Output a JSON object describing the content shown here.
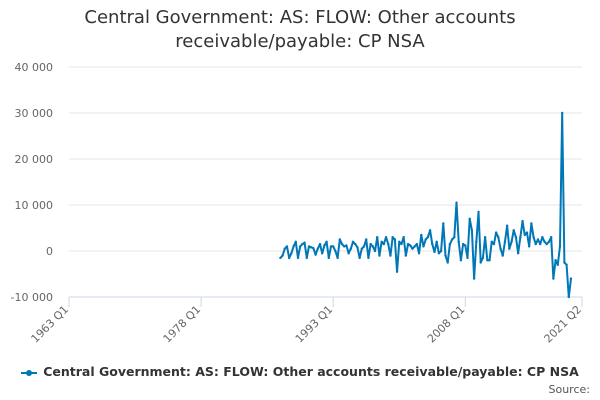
{
  "chart_data": {
    "type": "line",
    "title_lines": [
      "Central Government: AS: FLOW: Other accounts",
      "receivable/payable: CP NSA"
    ],
    "xlabel": "",
    "ylabel": "",
    "ylim": [
      -10000,
      40000
    ],
    "y_ticks": [
      -10000,
      0,
      10000,
      20000,
      30000,
      40000
    ],
    "y_tick_labels": [
      "-10 000",
      "0",
      "10 000",
      "20 000",
      "30 000",
      "40 000"
    ],
    "x_range": [
      1963.0,
      2021.25
    ],
    "x_tick_positions": [
      1963.0,
      1978.0,
      1993.0,
      2008.0,
      2021.25
    ],
    "x_tick_labels": [
      "1963 Q1",
      "1978 Q1",
      "1993 Q1",
      "2008 Q1",
      "2021 Q2"
    ],
    "grid": true,
    "legend_position": "bottom",
    "series": [
      {
        "name": "Central Government: AS: FLOW: Other accounts receivable/payable: CP NSA",
        "color": "#0077b6",
        "x_start": 1987.0,
        "x_step": 0.25,
        "values": [
          -1500,
          -1000,
          500,
          1000,
          -1500,
          -500,
          1000,
          2000,
          -1500,
          1000,
          1500,
          1800,
          -1500,
          1000,
          800,
          600,
          -800,
          500,
          1500,
          -500,
          1200,
          2000,
          -1500,
          1000,
          1000,
          0,
          -1500,
          2500,
          1500,
          1000,
          1200,
          -500,
          500,
          2000,
          1500,
          800,
          -1500,
          500,
          1000,
          2500,
          -1500,
          1500,
          1000,
          0,
          3000,
          -1000,
          2000,
          1500,
          3000,
          1500,
          -1000,
          3000,
          2500,
          -4500,
          2000,
          1500,
          3000,
          -1000,
          1500,
          1200,
          500,
          1000,
          1500,
          -500,
          3500,
          1000,
          2500,
          3000,
          4500,
          1500,
          -200,
          2000,
          -500,
          0,
          6000,
          -1000,
          -2500,
          1500,
          2500,
          3000,
          10500,
          2000,
          -2000,
          1500,
          1200,
          -1500,
          7000,
          4500,
          -6000,
          2000,
          8500,
          -2500,
          -1500,
          3000,
          -2000,
          -2000,
          2000,
          1500,
          4000,
          3000,
          500,
          -1000,
          2000,
          5500,
          500,
          2000,
          4500,
          3000,
          -500,
          3000,
          6500,
          3500,
          4000,
          1000,
          6000,
          3000,
          1500,
          2500,
          1500,
          3000,
          2000,
          1500,
          2000,
          3000,
          -6000,
          -2000,
          -3000,
          1000,
          30000,
          -2500,
          -3000,
          -10000,
          -6000
        ]
      }
    ]
  },
  "legend": {
    "label": "Central Government: AS: FLOW: Other accounts receivable/payable: CP NSA"
  },
  "credits": "Source:"
}
